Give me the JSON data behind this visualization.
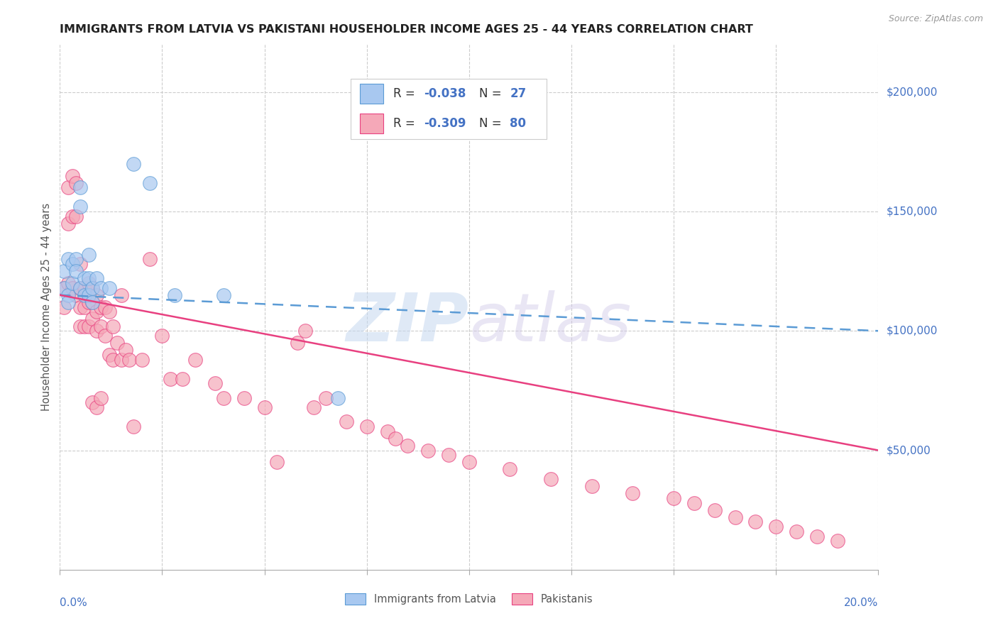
{
  "title": "IMMIGRANTS FROM LATVIA VS PAKISTANI HOUSEHOLDER INCOME AGES 25 - 44 YEARS CORRELATION CHART",
  "source": "Source: ZipAtlas.com",
  "ylabel": "Householder Income Ages 25 - 44 years",
  "ytick_labels": [
    "$50,000",
    "$100,000",
    "$150,000",
    "$200,000"
  ],
  "ytick_values": [
    50000,
    100000,
    150000,
    200000
  ],
  "ylim": [
    0,
    220000
  ],
  "xlim": [
    0.0,
    0.2
  ],
  "color_latvia": "#A8C8F0",
  "color_pakistan": "#F5A8B8",
  "color_latvialine": "#5B9BD5",
  "color_pakistanline": "#E84080",
  "color_axis_labels": "#4472C4",
  "color_title": "#222222",
  "legend_r1": "-0.038",
  "legend_n1": "27",
  "legend_r2": "-0.309",
  "legend_n2": "80",
  "lv_line_x0": 0.0,
  "lv_line_y0": 115000,
  "lv_line_x1": 0.2,
  "lv_line_y1": 100000,
  "pk_line_x0": 0.0,
  "pk_line_y0": 115000,
  "pk_line_x1": 0.2,
  "pk_line_y1": 50000,
  "lv_x": [
    0.001,
    0.001,
    0.002,
    0.002,
    0.002,
    0.003,
    0.003,
    0.004,
    0.004,
    0.005,
    0.005,
    0.005,
    0.006,
    0.006,
    0.007,
    0.007,
    0.007,
    0.008,
    0.008,
    0.009,
    0.01,
    0.012,
    0.018,
    0.022,
    0.028,
    0.04,
    0.068
  ],
  "lv_y": [
    125000,
    118000,
    130000,
    115000,
    112000,
    128000,
    120000,
    130000,
    125000,
    160000,
    152000,
    118000,
    122000,
    115000,
    132000,
    122000,
    115000,
    118000,
    112000,
    122000,
    118000,
    118000,
    170000,
    162000,
    115000,
    115000,
    72000
  ],
  "pk_x": [
    0.001,
    0.001,
    0.002,
    0.002,
    0.002,
    0.003,
    0.003,
    0.003,
    0.004,
    0.004,
    0.004,
    0.005,
    0.005,
    0.005,
    0.005,
    0.006,
    0.006,
    0.006,
    0.007,
    0.007,
    0.007,
    0.008,
    0.008,
    0.008,
    0.008,
    0.009,
    0.009,
    0.009,
    0.009,
    0.01,
    0.01,
    0.01,
    0.011,
    0.011,
    0.012,
    0.012,
    0.013,
    0.013,
    0.014,
    0.015,
    0.015,
    0.016,
    0.017,
    0.018,
    0.02,
    0.022,
    0.025,
    0.027,
    0.03,
    0.033,
    0.038,
    0.04,
    0.045,
    0.05,
    0.053,
    0.058,
    0.06,
    0.062,
    0.065,
    0.07,
    0.075,
    0.08,
    0.082,
    0.085,
    0.09,
    0.095,
    0.1,
    0.11,
    0.12,
    0.13,
    0.14,
    0.15,
    0.155,
    0.16,
    0.165,
    0.17,
    0.175,
    0.18,
    0.185,
    0.19
  ],
  "pk_y": [
    118000,
    110000,
    160000,
    145000,
    120000,
    165000,
    148000,
    118000,
    162000,
    148000,
    115000,
    118000,
    110000,
    102000,
    128000,
    118000,
    110000,
    102000,
    120000,
    112000,
    102000,
    118000,
    112000,
    105000,
    70000,
    115000,
    108000,
    100000,
    68000,
    110000,
    102000,
    72000,
    110000,
    98000,
    108000,
    90000,
    102000,
    88000,
    95000,
    88000,
    115000,
    92000,
    88000,
    60000,
    88000,
    130000,
    98000,
    80000,
    80000,
    88000,
    78000,
    72000,
    72000,
    68000,
    45000,
    95000,
    100000,
    68000,
    72000,
    62000,
    60000,
    58000,
    55000,
    52000,
    50000,
    48000,
    45000,
    42000,
    38000,
    35000,
    32000,
    30000,
    28000,
    25000,
    22000,
    20000,
    18000,
    16000,
    14000,
    12000
  ]
}
